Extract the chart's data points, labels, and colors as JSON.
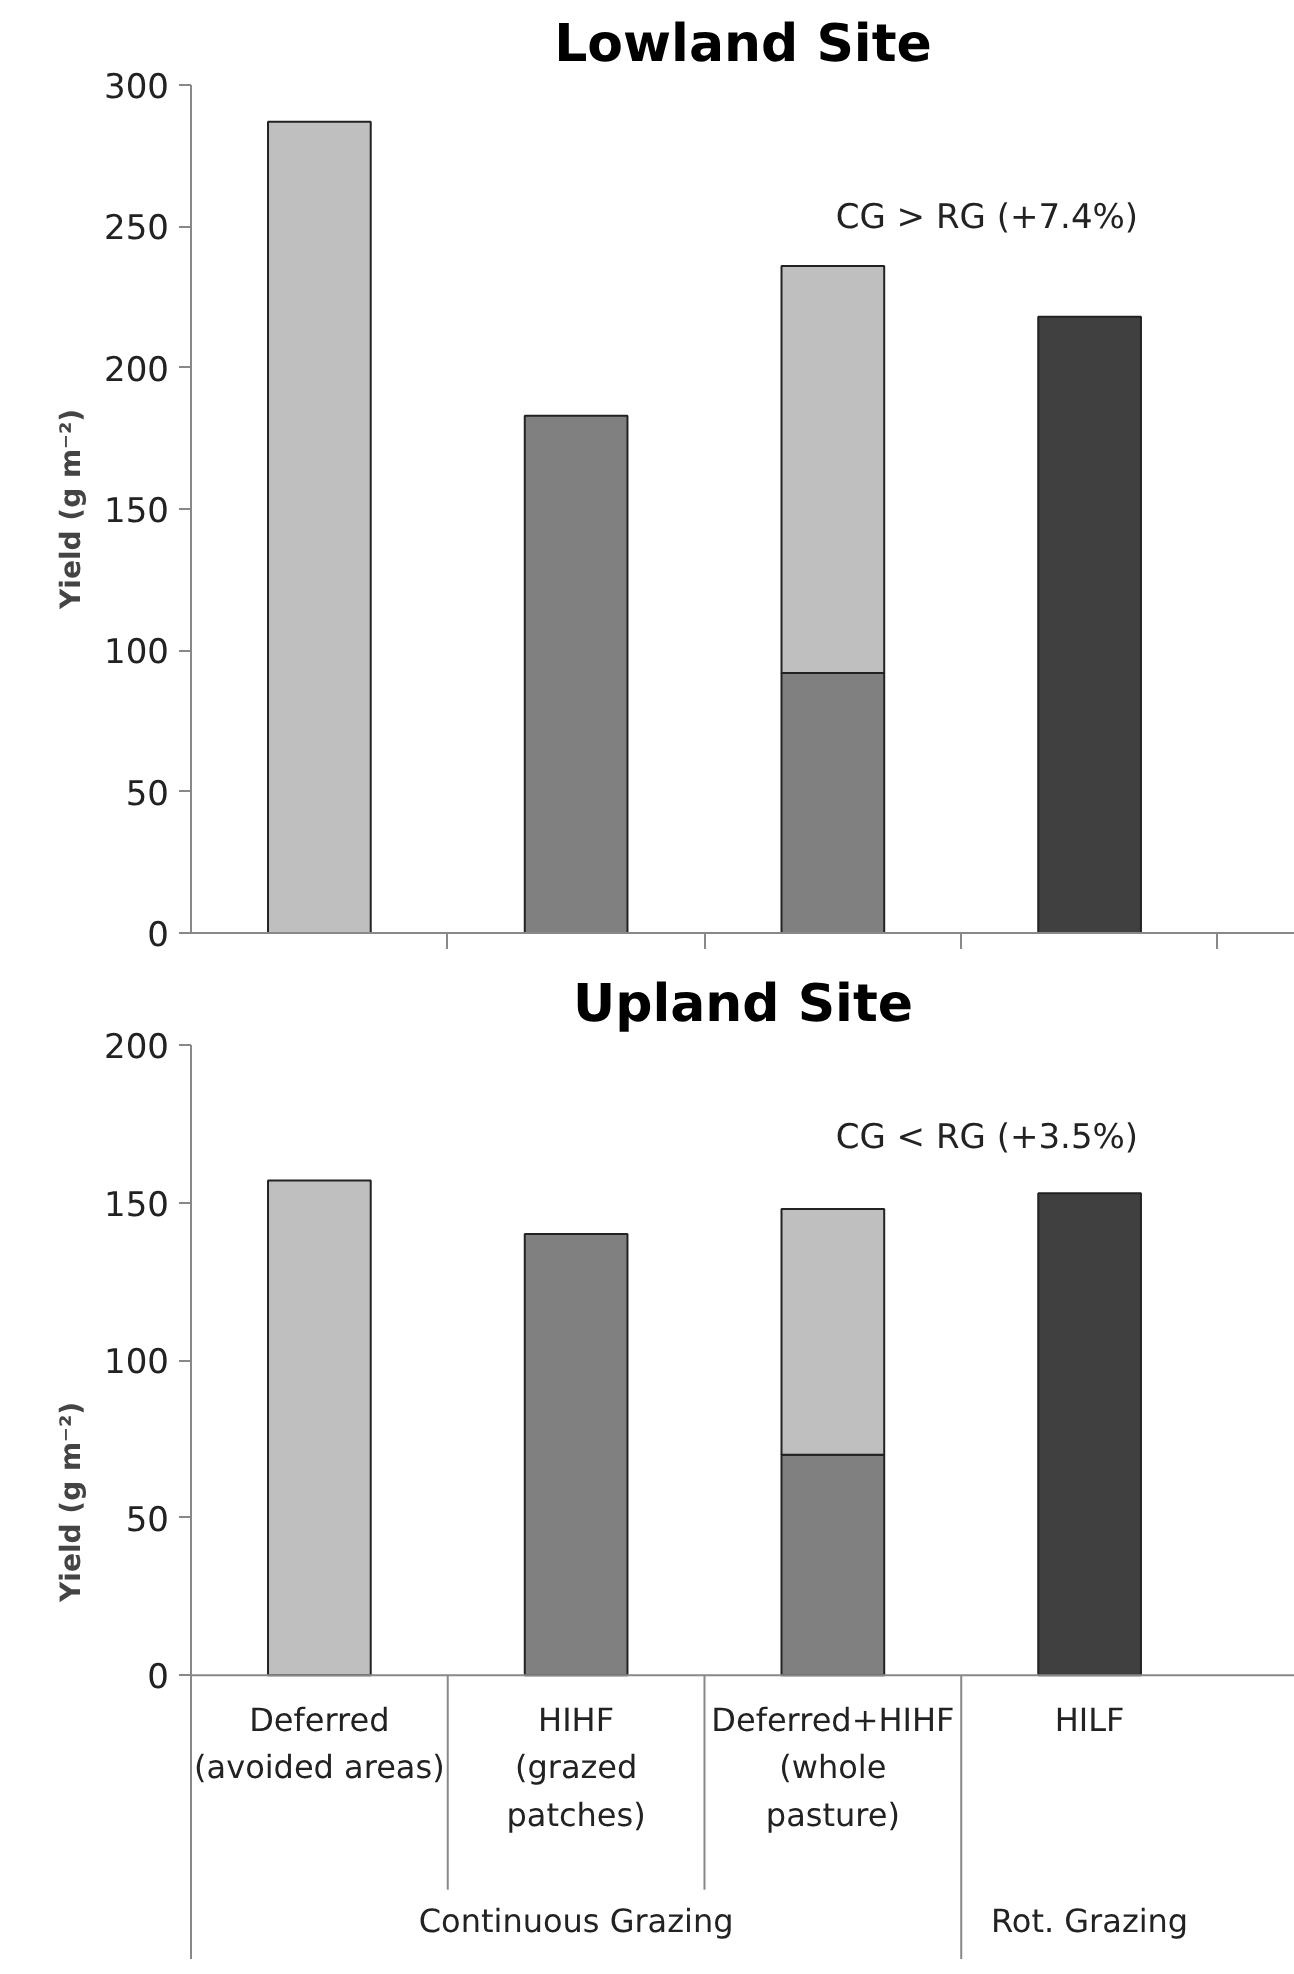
{
  "chart_data": [
    {
      "type": "bar",
      "title": "Lowland Site",
      "ylabel": "Yield (g m⁻²)",
      "stacked": true,
      "tick_labels": "y",
      "categories": [
        null,
        null,
        null,
        null
      ],
      "series": [
        {
          "color": "#808080",
          "values": [
            null,
            183,
            92,
            null
          ]
        },
        {
          "color": "#bfbfbf",
          "values": [
            287,
            null,
            144,
            null
          ]
        },
        {
          "color": "#404040",
          "values": [
            null,
            null,
            null,
            218
          ]
        }
      ],
      "ylim": [
        0,
        300
      ],
      "yticks": [
        0,
        50,
        100,
        150,
        200,
        250,
        300
      ],
      "grid": false,
      "annotations": [
        "CG > RG (+7.4%)"
      ]
    },
    {
      "type": "bar",
      "title": "Upland Site",
      "ylabel": "Yield (g m⁻²)",
      "stacked": true,
      "categories": [
        "Deferred\n(avoided areas)",
        "HIHF\n(grazed\npatches)",
        "Deferred+HIHF\n(whole\npasture)",
        "HILF"
      ],
      "series": [
        {
          "color": "#808080",
          "values": [
            null,
            140,
            70,
            null
          ]
        },
        {
          "color": "#bfbfbf",
          "values": [
            157,
            null,
            78,
            null
          ]
        },
        {
          "color": "#404040",
          "values": [
            null,
            null,
            null,
            153
          ]
        }
      ],
      "ylim": [
        0,
        200
      ],
      "yticks": [
        0,
        50,
        100,
        150,
        200
      ],
      "grid": false,
      "annotations": [
        "CG < RG (+3.5%)",
        "Continuous Grazing",
        "Rot. Grazing"
      ]
    }
  ]
}
